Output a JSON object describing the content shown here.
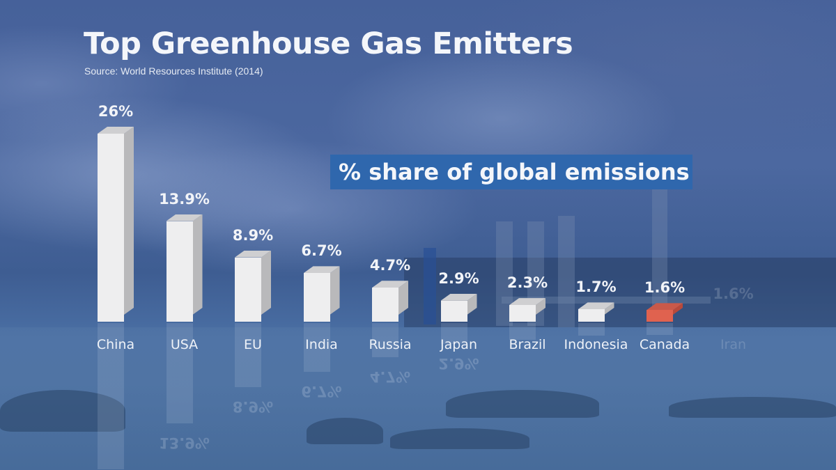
{
  "title": "Top Greenhouse Gas Emitters",
  "source": "Source: World Resources Institute (2014)",
  "subtitle": "% share of global emissions",
  "colors": {
    "bar_default": "#eeeeef",
    "bar_highlight": "#e0624f",
    "subtitle_bg": "#2f67ad",
    "text": "#f4f6fa"
  },
  "chart_data": {
    "type": "bar",
    "title": "Top Greenhouse Gas Emitters",
    "subtitle": "% share of global emissions",
    "source": "Source: World Resources Institute (2014)",
    "xlabel": "",
    "ylabel": "% share of global emissions",
    "categories": [
      "China",
      "USA",
      "EU",
      "India",
      "Russia",
      "Japan",
      "Brazil",
      "Indonesia",
      "Canada",
      "Iran"
    ],
    "values": [
      26,
      13.9,
      8.9,
      6.7,
      4.7,
      2.9,
      2.3,
      1.7,
      1.6,
      1.6
    ],
    "value_labels": [
      "26%",
      "13.9%",
      "8.9%",
      "6.7%",
      "4.7%",
      "2.9%",
      "2.3%",
      "1.7%",
      "1.6%",
      "1.6%"
    ],
    "highlight": "Canada",
    "faded": [
      "Iran"
    ],
    "ylim": [
      0,
      26
    ],
    "grid": false,
    "legend": "none",
    "style": "3d-bars-with-reflection"
  }
}
